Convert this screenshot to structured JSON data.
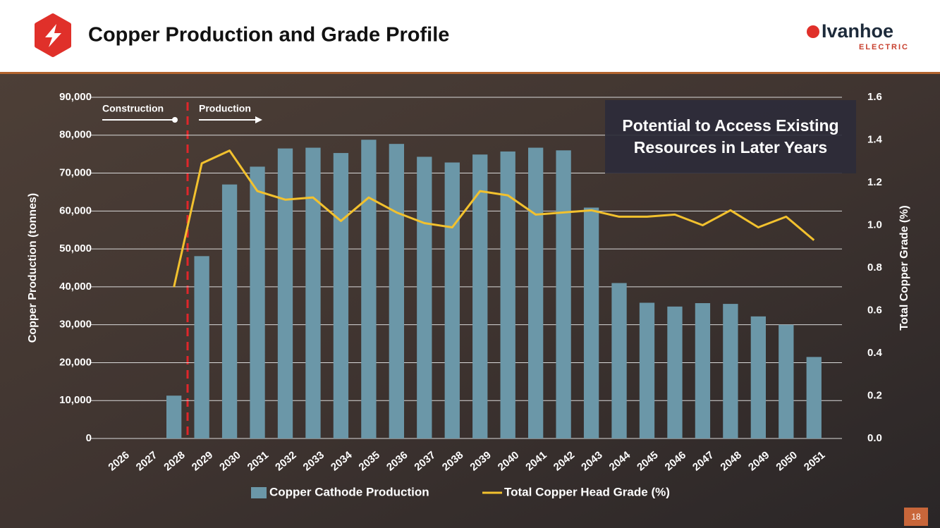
{
  "header": {
    "title": "Copper Production and Grade Profile",
    "logo_name": "Ivanhoe",
    "logo_sub": "ELECTRIC"
  },
  "page_number": "18",
  "chart_data": {
    "type": "bar_line",
    "categories": [
      "2026",
      "2027",
      "2028",
      "2029",
      "2030",
      "2031",
      "2032",
      "2033",
      "2034",
      "2035",
      "2036",
      "2037",
      "2038",
      "2039",
      "2040",
      "2041",
      "2042",
      "2043",
      "2044",
      "2045",
      "2046",
      "2047",
      "2048",
      "2049",
      "2050",
      "2051"
    ],
    "series": [
      {
        "name": "Copper Cathode Production",
        "color": "#6b97a8",
        "type": "bar",
        "axis": "y",
        "values": [
          null,
          null,
          11300,
          48100,
          67000,
          71700,
          76500,
          76700,
          75300,
          78800,
          77700,
          74300,
          72800,
          74900,
          75700,
          76700,
          76000,
          60900,
          41000,
          35800,
          34800,
          35700,
          35500,
          32200,
          30000,
          21500
        ]
      },
      {
        "name": "Total Copper Head Grade (%)",
        "color": "#f2c12e",
        "type": "line",
        "axis": "y2",
        "values": [
          null,
          null,
          0.71,
          1.29,
          1.35,
          1.16,
          1.12,
          1.13,
          1.02,
          1.13,
          1.06,
          1.01,
          0.99,
          1.16,
          1.14,
          1.05,
          1.06,
          1.07,
          1.04,
          1.04,
          1.05,
          1.0,
          1.07,
          0.99,
          1.04,
          0.93
        ]
      }
    ],
    "ylabel": "Copper Production (tonnes)",
    "y2label": "Total Copper Grade (%)",
    "ylim": [
      0,
      90000
    ],
    "yticks": [
      0,
      {
        "value": 10000,
        "label": "10,000"
      },
      {
        "value": 20000,
        "label": "20,000"
      },
      {
        "value": 30000,
        "label": "30,000"
      },
      {
        "value": 40000,
        "label": "40,000"
      },
      {
        "value": 50000,
        "label": "50,000"
      },
      {
        "value": 60000,
        "label": "60,000"
      },
      {
        "value": 70000,
        "label": "70,000"
      },
      {
        "value": 80000,
        "label": "80,000"
      },
      {
        "value": 90000,
        "label": "90,000"
      }
    ],
    "y2lim": [
      0,
      1.6
    ],
    "y2ticks": [
      {
        "value": 0,
        "label": "0.0"
      },
      0.2,
      0.4,
      0.6,
      0.8,
      {
        "value": 1,
        "label": "1.0"
      },
      1.2,
      1.4,
      1.6
    ],
    "grid": true,
    "annotations": {
      "construction": "Construction",
      "production": "Production",
      "callout": "Potential to Access Existing Resources in Later Years"
    }
  }
}
